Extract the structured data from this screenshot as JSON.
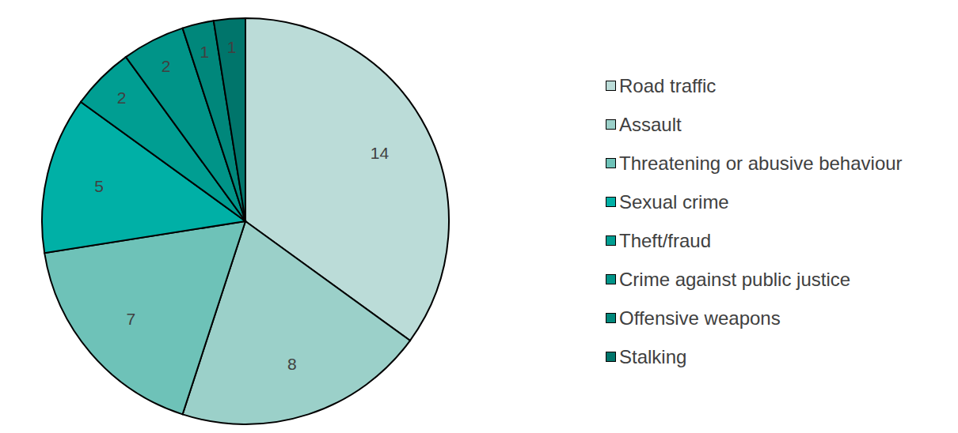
{
  "chart_data": {
    "type": "pie",
    "categories": [
      "Road traffic",
      "Assault",
      "Threatening or abusive behaviour",
      "Sexual crime",
      "Theft/fraud",
      "Crime against public justice",
      "Offensive weapons",
      "Stalking"
    ],
    "values": [
      14,
      8,
      7,
      5,
      2,
      2,
      1,
      1
    ],
    "colors": [
      "#bbdcd8",
      "#9bd0c9",
      "#6ec2b8",
      "#00b0a6",
      "#009e92",
      "#009488",
      "#00877b",
      "#00756b"
    ],
    "data_labels": true,
    "legend": "right"
  }
}
